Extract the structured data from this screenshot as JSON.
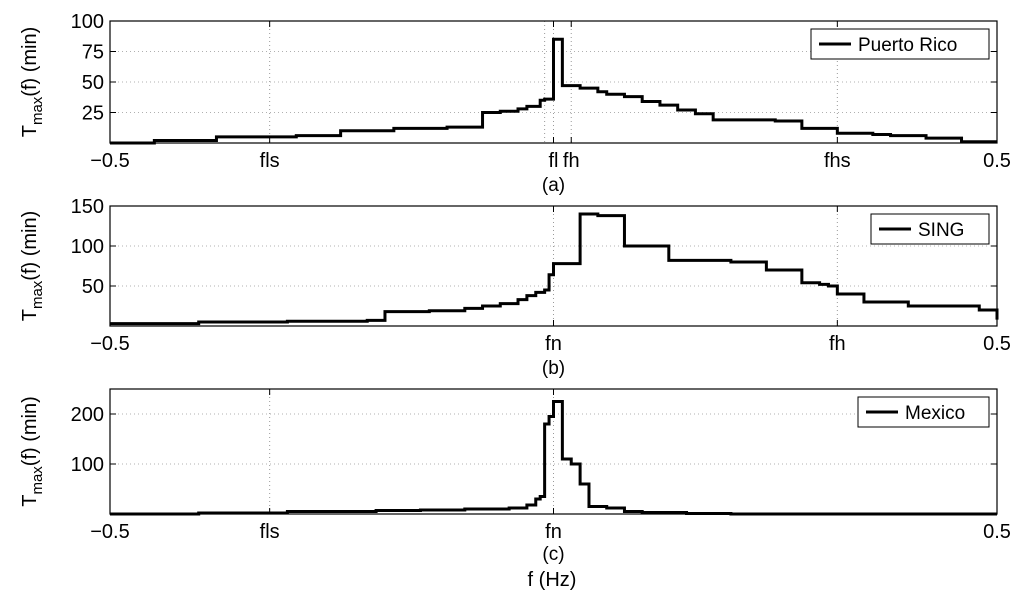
{
  "figure": {
    "xlabel": "f (Hz)"
  },
  "chart_data": [
    {
      "type": "line",
      "subplot_label": "(a)",
      "ylabel_main": "T",
      "ylabel_sub": "max",
      "ylabel_rest": "(f) (min)",
      "legend": "Puerto Rico",
      "legend_position": "top-right",
      "xlim": [
        -0.5,
        0.5
      ],
      "ylim": [
        0,
        100
      ],
      "yticks": [
        25,
        50,
        75,
        100
      ],
      "ytick_labels": [
        "25",
        "50",
        "75",
        "100"
      ],
      "xticks": [
        -0.5,
        -0.32,
        0.0,
        0.02,
        0.32,
        0.5
      ],
      "xtick_labels": [
        "−0.5",
        "fls",
        "fl",
        "fh",
        "fhs",
        "0.5"
      ],
      "gridlines_x": [
        -0.32,
        -0.01,
        0.0,
        0.02,
        0.32
      ],
      "grid_y": true,
      "series": [
        {
          "name": "Puerto Rico",
          "x": [
            -0.5,
            -0.45,
            -0.38,
            -0.29,
            -0.24,
            -0.18,
            -0.12,
            -0.08,
            -0.06,
            -0.04,
            -0.03,
            -0.015,
            -0.01,
            0.0,
            0.01,
            0.03,
            0.05,
            0.06,
            0.08,
            0.1,
            0.12,
            0.14,
            0.16,
            0.18,
            0.25,
            0.28,
            0.32,
            0.36,
            0.38,
            0.42,
            0.46,
            0.5
          ],
          "y": [
            0,
            2,
            5,
            6,
            10,
            12,
            13,
            25,
            26,
            28,
            30,
            35,
            36,
            85,
            47,
            45,
            42,
            40,
            38,
            34,
            31,
            27,
            24,
            19,
            18,
            12,
            8,
            7,
            6,
            4,
            1,
            1
          ]
        }
      ]
    },
    {
      "type": "line",
      "subplot_label": "(b)",
      "ylabel_main": "T",
      "ylabel_sub": "max",
      "ylabel_rest": "(f) (min)",
      "legend": "SING",
      "legend_position": "top-right",
      "xlim": [
        -0.5,
        0.5
      ],
      "ylim": [
        0,
        150
      ],
      "yticks": [
        50,
        100,
        150
      ],
      "ytick_labels": [
        "50",
        "100",
        "150"
      ],
      "xticks": [
        -0.5,
        0.0,
        0.32,
        0.5
      ],
      "xtick_labels": [
        "−0.5",
        "fn",
        "fh",
        "0.5"
      ],
      "gridlines_x": [
        0.0,
        0.32
      ],
      "grid_y": true,
      "series": [
        {
          "name": "SING",
          "x": [
            -0.5,
            -0.4,
            -0.3,
            -0.21,
            -0.19,
            -0.14,
            -0.1,
            -0.08,
            -0.06,
            -0.04,
            -0.03,
            -0.02,
            -0.01,
            -0.005,
            0.0,
            0.03,
            0.05,
            0.08,
            0.13,
            0.2,
            0.24,
            0.28,
            0.3,
            0.31,
            0.32,
            0.35,
            0.4,
            0.48,
            0.5
          ],
          "y": [
            3,
            5,
            6,
            7,
            18,
            19,
            22,
            25,
            28,
            33,
            38,
            42,
            45,
            64,
            78,
            140,
            138,
            100,
            82,
            80,
            70,
            54,
            52,
            50,
            40,
            30,
            25,
            20,
            8
          ]
        }
      ]
    },
    {
      "type": "line",
      "subplot_label": "(c)",
      "ylabel_main": "T",
      "ylabel_sub": "max",
      "ylabel_rest": "(f) (min)",
      "legend": "Mexico",
      "legend_position": "top-right",
      "xlim": [
        -0.5,
        0.5
      ],
      "ylim": [
        0,
        250
      ],
      "yticks": [
        100,
        200
      ],
      "ytick_labels": [
        "100",
        "200"
      ],
      "xticks": [
        -0.5,
        -0.32,
        0.0,
        0.5
      ],
      "xtick_labels": [
        "−0.5",
        "fls",
        "fn",
        "0.5"
      ],
      "gridlines_x": [
        -0.32,
        0.0
      ],
      "grid_y": true,
      "series": [
        {
          "name": "Mexico",
          "x": [
            -0.5,
            -0.4,
            -0.3,
            -0.2,
            -0.15,
            -0.1,
            -0.05,
            -0.03,
            -0.02,
            -0.015,
            -0.01,
            -0.005,
            0.0,
            0.01,
            0.02,
            0.03,
            0.04,
            0.06,
            0.08,
            0.1,
            0.15,
            0.2,
            0.5
          ],
          "y": [
            0,
            2,
            5,
            7,
            8,
            10,
            12,
            18,
            30,
            35,
            180,
            195,
            225,
            110,
            100,
            60,
            15,
            12,
            5,
            3,
            1,
            0,
            0
          ]
        }
      ]
    }
  ]
}
